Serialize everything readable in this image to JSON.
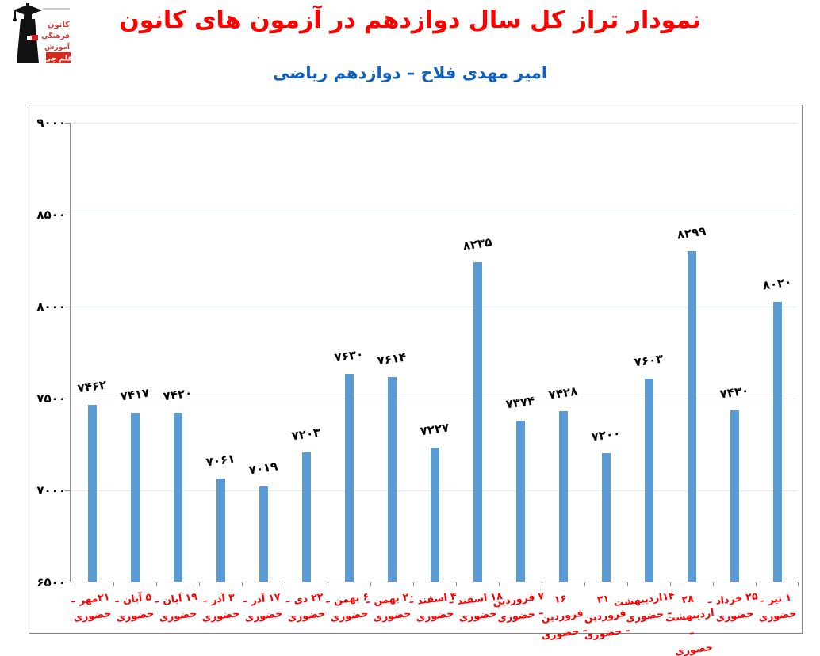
{
  "header": {
    "title": "نمودار تراز کل سال دوازدهم در آزمون های کانون",
    "subtitle": "امیر مهدی فلاح – دوازدهم ریاضی"
  },
  "logo": {
    "line1": "کانون",
    "line2": "فرهنگی",
    "line3": "آموزش",
    "badge": "قلم چی"
  },
  "colors": {
    "title_red": "#FF0000",
    "subtitle_blue": "#1060C0",
    "bar_blue": "#5B9BD5",
    "gridline_blue": "#DCE9F7",
    "axis_gray": "#8C8C8C",
    "border_gray": "#7F7F7F",
    "x_label_red": "#FF0000",
    "value_label_black": "#000000"
  },
  "chart_data": {
    "type": "bar",
    "title": "نمودار تراز کل سال دوازدهم در آزمون های کانون",
    "subtitle": "امیر مهدی فلاح – دوازدهم ریاضی",
    "ylim": [
      6500,
      9000
    ],
    "grid": true,
    "legend": "none",
    "bar_color": "#5B9BD5",
    "y_ticks": [
      {
        "value": 9000,
        "label": "۹۰۰۰"
      },
      {
        "value": 8500,
        "label": "۸۵۰۰"
      },
      {
        "value": 8000,
        "label": "۸۰۰۰"
      },
      {
        "value": 7500,
        "label": "۷۵۰۰"
      },
      {
        "value": 7000,
        "label": "۷۰۰۰"
      },
      {
        "value": 6500,
        "label": "۶۵۰۰"
      }
    ],
    "points": [
      {
        "category": "۲۱مهر –\nحضوری",
        "value": 7462,
        "value_label": "۷۴۶۲"
      },
      {
        "category": "۵ آبان –\nحضوری",
        "value": 7417,
        "value_label": "۷۴۱۷"
      },
      {
        "category": "۱۹ آبان –\nحضوری",
        "value": 7420,
        "value_label": "۷۴۲۰"
      },
      {
        "category": "۳ آذر –\nحضوری",
        "value": 7061,
        "value_label": "۷۰۶۱"
      },
      {
        "category": "۱۷ آذر –\nحضوری",
        "value": 7019,
        "value_label": "۷۰۱۹"
      },
      {
        "category": "۲۲ دی –\nحضوری",
        "value": 7203,
        "value_label": "۷۲۰۳"
      },
      {
        "category": "۶ بهمن –\nحضوری",
        "value": 7630,
        "value_label": "۷۶۳۰"
      },
      {
        "category": "۲۰ بهمن –\nحضوری",
        "value": 7614,
        "value_label": "۷۶۱۴"
      },
      {
        "category": "۴ اسفند –\nحضوری",
        "value": 7227,
        "value_label": "۷۲۲۷"
      },
      {
        "category": "۱۸ اسفند –\nحضوری",
        "value": 8235,
        "value_label": "۸۲۳۵"
      },
      {
        "category": "۷ فروردین\n– حضوری",
        "value": 7374,
        "value_label": "۷۳۷۴"
      },
      {
        "category": "۱۶ فروردین\n– حضوری",
        "value": 7428,
        "value_label": "۷۴۲۸"
      },
      {
        "category": "۳۱ فروردین\n– حضوری",
        "value": 7200,
        "value_label": "۷۲۰۰"
      },
      {
        "category": "۱۴اردیبهشت\n– حضوری",
        "value": 7603,
        "value_label": "۷۶۰۳"
      },
      {
        "category": "۲۸\nاردیبهشت –\nحضوری",
        "value": 8299,
        "value_label": "۸۲۹۹"
      },
      {
        "category": "۲۵ خرداد –\nحضوری",
        "value": 7430,
        "value_label": "۷۴۳۰"
      },
      {
        "category": "۱ تیر –\nحضوری",
        "value": 8020,
        "value_label": "۸۰۲۰"
      }
    ]
  }
}
